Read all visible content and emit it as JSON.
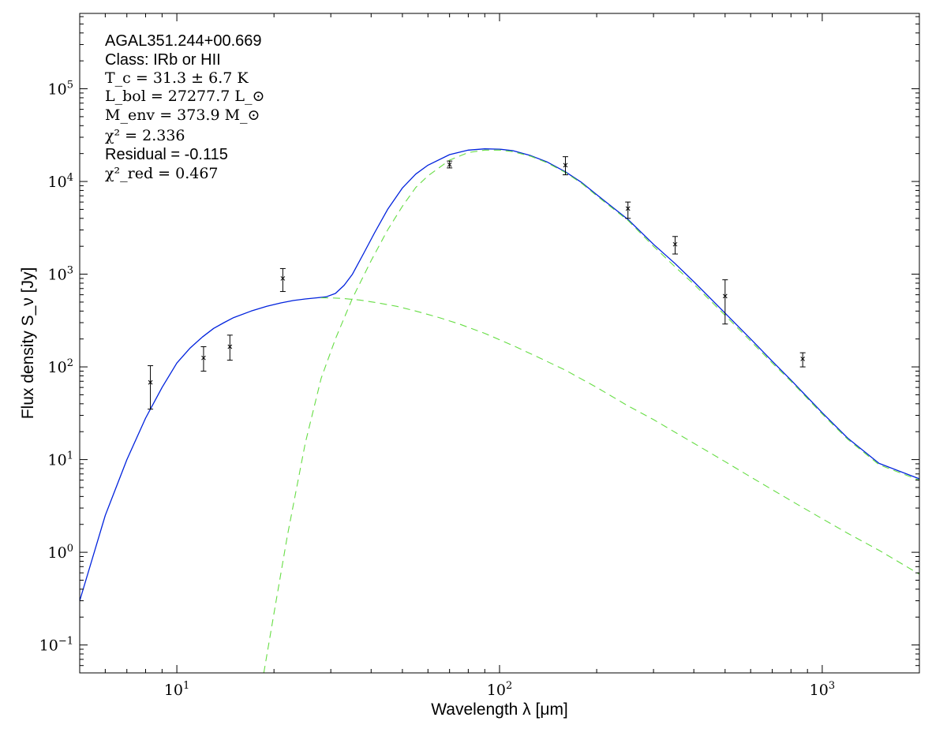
{
  "chart_data": {
    "type": "line",
    "xlabel": "Wavelength λ [μm]",
    "ylabel": "Flux density S_ν [Jy]",
    "x_scale": "log",
    "y_scale": "log",
    "xlim": [
      5,
      2000
    ],
    "ylim": [
      0.05,
      650000
    ],
    "grid": false,
    "x_ticks": [
      {
        "value": 10,
        "base": "10",
        "exp": "1"
      },
      {
        "value": 100,
        "base": "10",
        "exp": "2"
      },
      {
        "value": 1000,
        "base": "10",
        "exp": "3"
      }
    ],
    "y_ticks": [
      {
        "value": 0.1,
        "base": "10",
        "exp": "−1"
      },
      {
        "value": 1,
        "base": "10",
        "exp": "0"
      },
      {
        "value": 10,
        "base": "10",
        "exp": "1"
      },
      {
        "value": 100,
        "base": "10",
        "exp": "2"
      },
      {
        "value": 1000,
        "base": "10",
        "exp": "3"
      },
      {
        "value": 10000,
        "base": "10",
        "exp": "4"
      },
      {
        "value": 100000,
        "base": "10",
        "exp": "5"
      }
    ],
    "annotations": {
      "source": "AGAL351.244+00.669",
      "class": "Class: IRb or HII",
      "tc": "T_c = 31.3 ± 6.7 K",
      "lbol": "L_bol = 27277.7 L_⊙",
      "menv": "M_env = 373.9 M_⊙",
      "chi2": "χ² = 2.336",
      "residual": "Residual = -0.115",
      "chi2red": "χ²_red = 0.467"
    },
    "observations": [
      {
        "x": 8.28,
        "y": 68,
        "ylo": 35,
        "yhi": 103
      },
      {
        "x": 12.1,
        "y": 125,
        "ylo": 90,
        "yhi": 165
      },
      {
        "x": 14.6,
        "y": 165,
        "ylo": 118,
        "yhi": 220
      },
      {
        "x": 21.3,
        "y": 900,
        "ylo": 650,
        "yhi": 1150
      },
      {
        "x": 70,
        "y": 15200,
        "ylo": 14000,
        "yhi": 16600
      },
      {
        "x": 160,
        "y": 15000,
        "ylo": 11800,
        "yhi": 18500
      },
      {
        "x": 250,
        "y": 5100,
        "ylo": 4000,
        "yhi": 6000
      },
      {
        "x": 350,
        "y": 2100,
        "ylo": 1650,
        "yhi": 2550
      },
      {
        "x": 500,
        "y": 580,
        "ylo": 290,
        "yhi": 870
      },
      {
        "x": 870,
        "y": 122,
        "ylo": 100,
        "yhi": 142
      }
    ],
    "series": [
      {
        "style": "solid",
        "color": "#0022dd",
        "x": [
          5,
          6,
          7,
          8,
          9,
          10,
          11,
          12,
          13,
          14,
          15,
          17,
          19,
          21,
          23,
          25,
          27,
          29,
          31,
          33,
          35,
          38,
          41,
          45,
          50,
          55,
          60,
          70,
          80,
          90,
          100,
          110,
          125,
          140,
          160,
          180,
          200,
          250,
          300,
          350,
          400,
          500,
          600,
          700,
          800,
          1000,
          1200,
          1500,
          2000
        ],
        "y": [
          0.3,
          2.5,
          10,
          28,
          60,
          110,
          160,
          210,
          260,
          300,
          340,
          400,
          450,
          490,
          520,
          540,
          555,
          570,
          620,
          760,
          1000,
          1700,
          2800,
          5000,
          8500,
          12000,
          15000,
          19500,
          21800,
          22500,
          22300,
          21500,
          19000,
          16300,
          12700,
          9700,
          7200,
          3900,
          2100,
          1300,
          830,
          380,
          200,
          115,
          72,
          32,
          17,
          9.1,
          6.2
        ]
      },
      {
        "style": "dashed",
        "color": "#66dd44",
        "x": [
          18.6,
          20,
          22,
          25,
          28,
          31,
          35,
          40,
          45,
          50,
          55,
          60,
          70,
          80,
          90,
          100,
          110,
          125,
          140,
          160,
          180,
          200,
          250,
          300,
          350,
          400,
          500,
          600,
          700,
          800,
          1000,
          1200,
          1500,
          2000
        ],
        "y": [
          0.05,
          0.22,
          1.5,
          15,
          75,
          200,
          550,
          1400,
          3000,
          5400,
          8600,
          11500,
          17000,
          20500,
          21800,
          21800,
          21000,
          18700,
          16000,
          12500,
          9500,
          7000,
          3800,
          2000,
          1200,
          780,
          360,
          190,
          110,
          70,
          31,
          16.5,
          8.8,
          6.0
        ]
      },
      {
        "style": "dashed",
        "color": "#66dd44",
        "x": [
          28,
          30,
          33,
          37,
          42,
          48,
          55,
          65,
          75,
          90,
          110,
          130,
          160,
          200,
          250,
          300,
          400,
          500,
          600,
          800,
          1000,
          1200,
          1500,
          2000
        ],
        "y": [
          555,
          555,
          545,
          525,
          490,
          450,
          400,
          340,
          290,
          230,
          170,
          130,
          92,
          60,
          38,
          27,
          15,
          9.5,
          6.5,
          3.6,
          2.3,
          1.6,
          1.05,
          0.58
        ]
      }
    ]
  }
}
